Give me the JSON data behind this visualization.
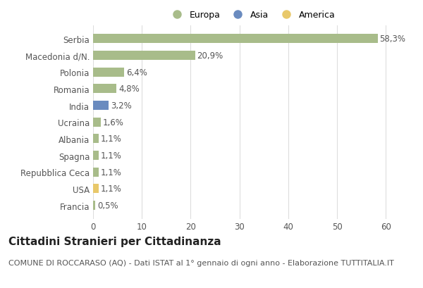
{
  "categories": [
    "Serbia",
    "Macedonia d/N.",
    "Polonia",
    "Romania",
    "India",
    "Ucraina",
    "Albania",
    "Spagna",
    "Repubblica Ceca",
    "USA",
    "Francia"
  ],
  "values": [
    58.3,
    20.9,
    6.4,
    4.8,
    3.2,
    1.6,
    1.1,
    1.1,
    1.1,
    1.1,
    0.5
  ],
  "labels": [
    "58,3%",
    "20,9%",
    "6,4%",
    "4,8%",
    "3,2%",
    "1,6%",
    "1,1%",
    "1,1%",
    "1,1%",
    "1,1%",
    "0,5%"
  ],
  "bar_colors": [
    "#a8bc8a",
    "#a8bc8a",
    "#a8bc8a",
    "#a8bc8a",
    "#6a8bbf",
    "#a8bc8a",
    "#a8bc8a",
    "#a8bc8a",
    "#a8bc8a",
    "#e8c86a",
    "#a8bc8a"
  ],
  "legend": [
    {
      "label": "Europa",
      "color": "#a8bc8a"
    },
    {
      "label": "Asia",
      "color": "#6a8bbf"
    },
    {
      "label": "America",
      "color": "#e8c86a"
    }
  ],
  "xlim": [
    0,
    65
  ],
  "xticks": [
    0,
    10,
    20,
    30,
    40,
    50,
    60
  ],
  "title": "Cittadini Stranieri per Cittadinanza",
  "subtitle": "COMUNE DI ROCCARASO (AQ) - Dati ISTAT al 1° gennaio di ogni anno - Elaborazione TUTTITALIA.IT",
  "background_color": "#ffffff",
  "grid_color": "#dddddd",
  "title_fontsize": 11,
  "subtitle_fontsize": 8,
  "tick_fontsize": 8.5,
  "label_fontsize": 8.5
}
